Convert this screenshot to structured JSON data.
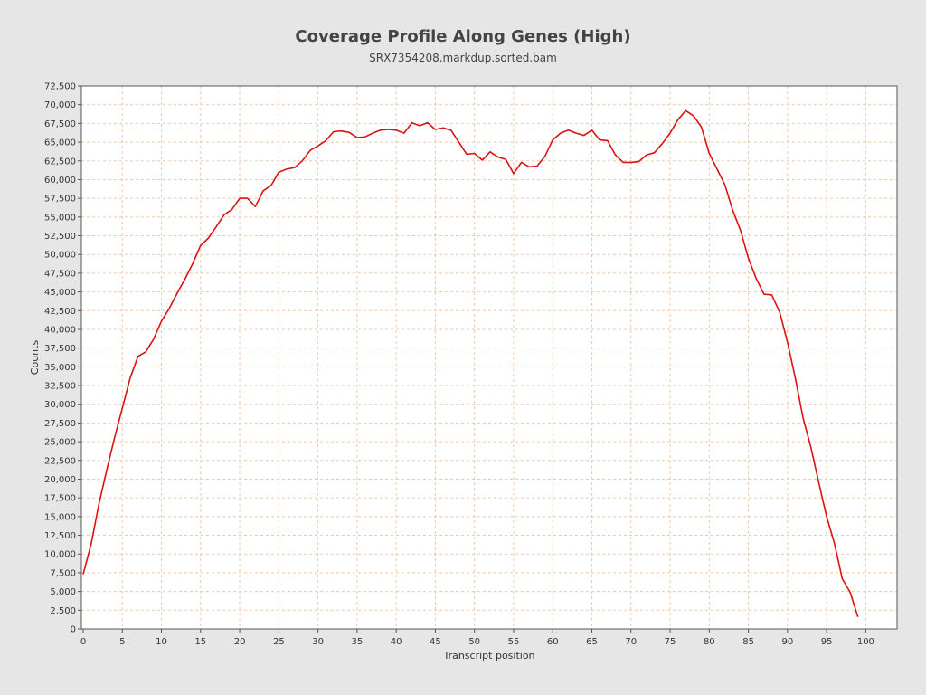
{
  "chart_data": {
    "type": "line",
    "title": "Coverage Profile Along Genes (High)",
    "subtitle": "SRX7354208.markdup.sorted.bam",
    "xlabel": "Transcript position",
    "ylabel": "Counts",
    "xlim": [
      0,
      104
    ],
    "ylim": [
      0,
      72500
    ],
    "x_ticks": [
      0,
      5,
      10,
      15,
      20,
      25,
      30,
      35,
      40,
      45,
      50,
      55,
      60,
      65,
      70,
      75,
      80,
      85,
      90,
      95,
      100
    ],
    "y_ticks": [
      0,
      2500,
      5000,
      7500,
      10000,
      12500,
      15000,
      17500,
      20000,
      22500,
      25000,
      27500,
      30000,
      32500,
      35000,
      37500,
      40000,
      42500,
      45000,
      47500,
      50000,
      52500,
      55000,
      57500,
      60000,
      62500,
      65000,
      67500,
      70000,
      72500
    ],
    "y_tick_labels": [
      "0",
      "2,500",
      "5,000",
      "7,500",
      "10,000",
      "12,500",
      "15,000",
      "17,500",
      "20,000",
      "22,500",
      "25,000",
      "27,500",
      "30,000",
      "32,500",
      "35,000",
      "37,500",
      "40,000",
      "42,500",
      "45,000",
      "47,500",
      "50,000",
      "52,500",
      "55,000",
      "57,500",
      "60,000",
      "62,500",
      "65,000",
      "67,500",
      "70,000",
      "72,500"
    ],
    "grid": true,
    "colors": {
      "line": "#dd1111",
      "grid": "#f0c8a8",
      "plot_bg": "#ffffff",
      "axis": "#555555"
    },
    "series": [
      {
        "x": [
          0,
          1,
          2,
          3,
          4,
          5,
          6,
          7,
          8,
          9,
          10,
          11,
          12,
          13,
          14,
          15,
          16,
          17,
          18,
          19,
          20,
          21,
          22,
          23,
          24,
          25,
          26,
          27,
          28,
          29,
          30,
          31,
          32,
          33,
          34,
          35,
          36,
          37,
          38,
          39,
          40,
          41,
          42,
          43,
          44,
          45,
          46,
          47,
          48,
          49,
          50,
          51,
          52,
          53,
          54,
          55,
          56,
          57,
          58,
          59,
          60,
          61,
          62,
          63,
          64,
          65,
          66,
          67,
          68,
          69,
          70,
          71,
          72,
          73,
          74,
          75,
          76,
          77,
          78,
          79,
          80,
          81,
          82,
          83,
          84,
          85,
          86,
          87,
          88,
          89,
          90,
          91,
          92,
          93,
          94,
          95,
          96,
          97,
          98,
          99
        ],
        "values": [
          7300,
          11300,
          16600,
          21200,
          25500,
          29500,
          33500,
          36400,
          37000,
          38700,
          41100,
          42800,
          44800,
          46700,
          48800,
          51200,
          52200,
          53700,
          55300,
          56000,
          57500,
          57500,
          56400,
          58500,
          59200,
          61000,
          61400,
          61600,
          62500,
          63900,
          64500,
          65200,
          66400,
          66500,
          66300,
          65600,
          65700,
          66200,
          66600,
          66700,
          66600,
          66200,
          67600,
          67200,
          67600,
          66700,
          66900,
          66600,
          65000,
          63400,
          63500,
          62600,
          63700,
          63000,
          62700,
          60800,
          62300,
          61700,
          61800,
          63100,
          65300,
          66200,
          66600,
          66200,
          65900,
          66600,
          65300,
          65200,
          63300,
          62300,
          62300,
          62400,
          63300,
          63600,
          64800,
          66200,
          68000,
          69200,
          68500,
          67000,
          63500,
          61400,
          59300,
          55900,
          53200,
          49500,
          46800,
          44700,
          44600,
          42300,
          38300,
          33500,
          28100,
          24200,
          19500,
          15000,
          11400,
          6700,
          4900,
          1600
        ]
      }
    ]
  }
}
